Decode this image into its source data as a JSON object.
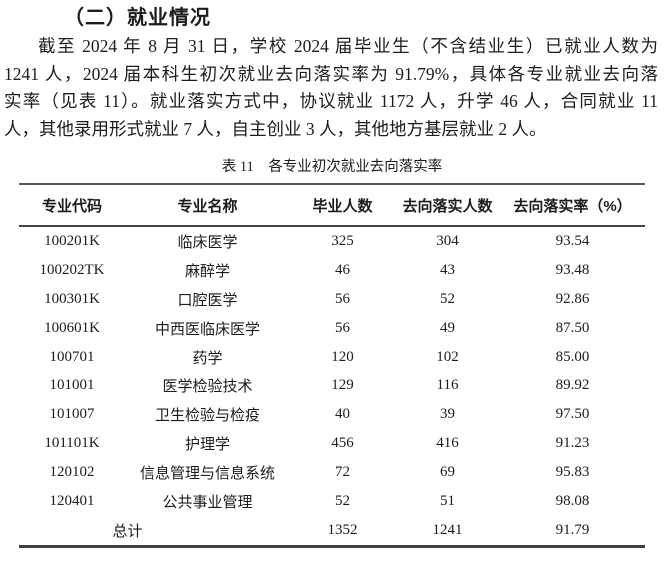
{
  "page": {
    "section_title": "（二）就业情况",
    "paragraph_lines": [
      "截至 2024 年 8 月 31 日，学校 2024 届毕业生（不含结业生）已就业人数为",
      "1241 人，2024 届本科生初次就业去向落实率为 91.79%，具体各专业就业去向落",
      "实率（见表 11）。就业落实方式中，协议就业 1172 人，升学 46 人，合同就业 11",
      "人，其他录用形式就业 7 人，自主创业 3 人，其他地方基层就业 2 人。"
    ]
  },
  "table": {
    "caption": "表 11　各专业初次就业去向落实率",
    "headers": [
      "专业代码",
      "专业名称",
      "毕业人数",
      "去向落实人数",
      "去向落实率（%）"
    ],
    "rows": [
      {
        "code": "100201K",
        "name": "临床医学",
        "graduates": "325",
        "placed": "304",
        "rate": "93.54"
      },
      {
        "code": "100202TK",
        "name": "麻醉学",
        "graduates": "46",
        "placed": "43",
        "rate": "93.48"
      },
      {
        "code": "100301K",
        "name": "口腔医学",
        "graduates": "56",
        "placed": "52",
        "rate": "92.86"
      },
      {
        "code": "100601K",
        "name": "中西医临床医学",
        "graduates": "56",
        "placed": "49",
        "rate": "87.50"
      },
      {
        "code": "100701",
        "name": "药学",
        "graduates": "120",
        "placed": "102",
        "rate": "85.00"
      },
      {
        "code": "101001",
        "name": "医学检验技术",
        "graduates": "129",
        "placed": "116",
        "rate": "89.92"
      },
      {
        "code": "101007",
        "name": "卫生检验与检疫",
        "graduates": "40",
        "placed": "39",
        "rate": "97.50"
      },
      {
        "code": "101101K",
        "name": "护理学",
        "graduates": "456",
        "placed": "416",
        "rate": "91.23"
      },
      {
        "code": "120102",
        "name": "信息管理与信息系统",
        "graduates": "72",
        "placed": "69",
        "rate": "95.83"
      },
      {
        "code": "120401",
        "name": "公共事业管理",
        "graduates": "52",
        "placed": "51",
        "rate": "98.08"
      }
    ],
    "total": {
      "label": "总计",
      "graduates": "1352",
      "placed": "1241",
      "rate": "91.79"
    }
  },
  "colors": {
    "background": "#ffffff",
    "text": "#1c1c1c",
    "table_line": "#454545"
  }
}
